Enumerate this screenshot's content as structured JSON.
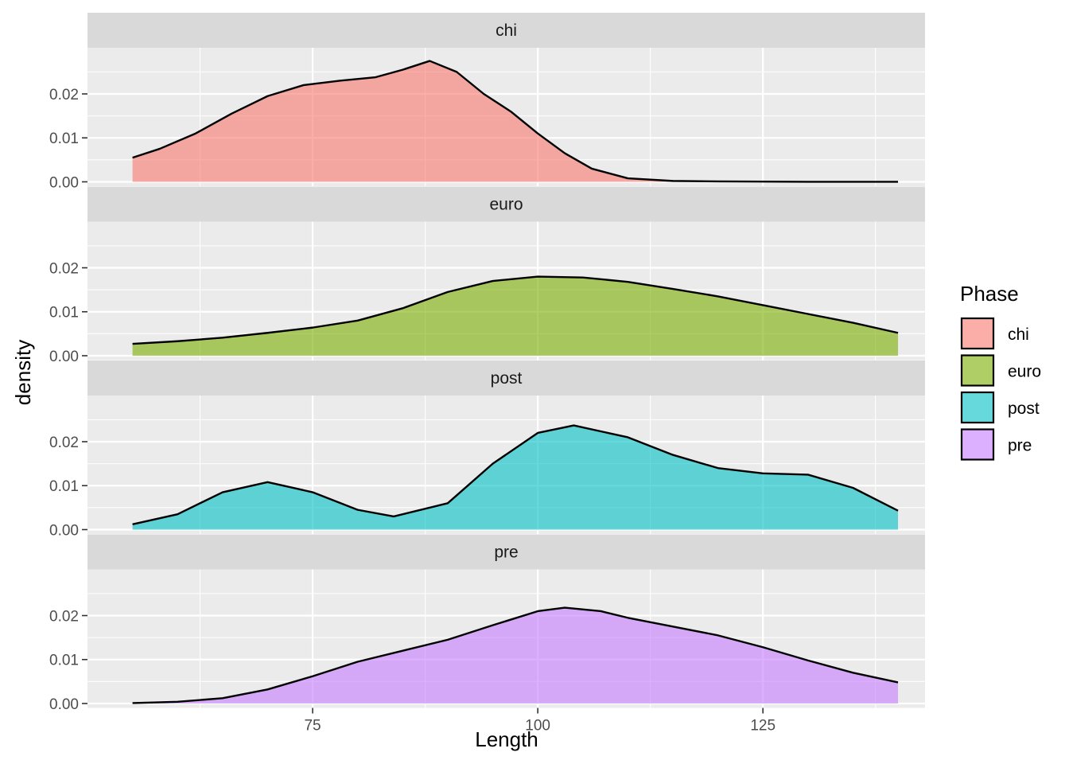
{
  "chart_data": {
    "type": "area",
    "subtype": "faceted density",
    "xlabel": "Length",
    "ylabel": "density",
    "xlim": [
      50,
      143
    ],
    "x_ticks": [
      75,
      100,
      125
    ],
    "y_ticks": [
      0.0,
      0.01,
      0.02
    ],
    "y_tick_labels": [
      "0.00",
      "0.01",
      "0.02"
    ],
    "ylim": [
      -0.001,
      0.0305
    ],
    "grid": true,
    "legend": {
      "title": "Phase",
      "position": "right"
    },
    "alpha": 0.6,
    "series": [
      {
        "name": "chi",
        "color": "#F8766D",
        "x": [
          55,
          58,
          62,
          66,
          70,
          74,
          78,
          82,
          85,
          88,
          91,
          94,
          97,
          100,
          103,
          106,
          110,
          115,
          120,
          130,
          140
        ],
        "y": [
          0.0055,
          0.0075,
          0.011,
          0.0155,
          0.0195,
          0.022,
          0.023,
          0.0238,
          0.0255,
          0.0275,
          0.025,
          0.02,
          0.016,
          0.011,
          0.0065,
          0.003,
          0.0008,
          0.0002,
          0.0001,
          0.0,
          0.0
        ]
      },
      {
        "name": "euro",
        "color": "#7CAE00",
        "x": [
          55,
          60,
          65,
          70,
          75,
          80,
          85,
          90,
          95,
          100,
          105,
          110,
          115,
          120,
          125,
          130,
          135,
          140
        ],
        "y": [
          0.0027,
          0.0033,
          0.0041,
          0.0052,
          0.0064,
          0.008,
          0.0108,
          0.0145,
          0.017,
          0.018,
          0.0178,
          0.0168,
          0.0152,
          0.0135,
          0.0115,
          0.0095,
          0.0075,
          0.0052
        ]
      },
      {
        "name": "post",
        "color": "#00BFC4",
        "x": [
          55,
          60,
          65,
          70,
          75,
          80,
          84,
          90,
          95,
          100,
          104,
          110,
          115,
          120,
          125,
          130,
          135,
          140
        ],
        "y": [
          0.0012,
          0.0035,
          0.0085,
          0.0108,
          0.0085,
          0.0045,
          0.003,
          0.006,
          0.015,
          0.022,
          0.0237,
          0.021,
          0.017,
          0.014,
          0.0128,
          0.0125,
          0.0095,
          0.0043
        ]
      },
      {
        "name": "pre",
        "color": "#C77CFF",
        "x": [
          55,
          60,
          65,
          70,
          75,
          80,
          85,
          90,
          95,
          100,
          103,
          107,
          110,
          115,
          120,
          125,
          130,
          135,
          140
        ],
        "y": [
          0.0001,
          0.0004,
          0.0012,
          0.0032,
          0.0062,
          0.0095,
          0.012,
          0.0145,
          0.0178,
          0.021,
          0.0218,
          0.021,
          0.0195,
          0.0175,
          0.0155,
          0.0128,
          0.0098,
          0.007,
          0.0048
        ]
      }
    ]
  }
}
